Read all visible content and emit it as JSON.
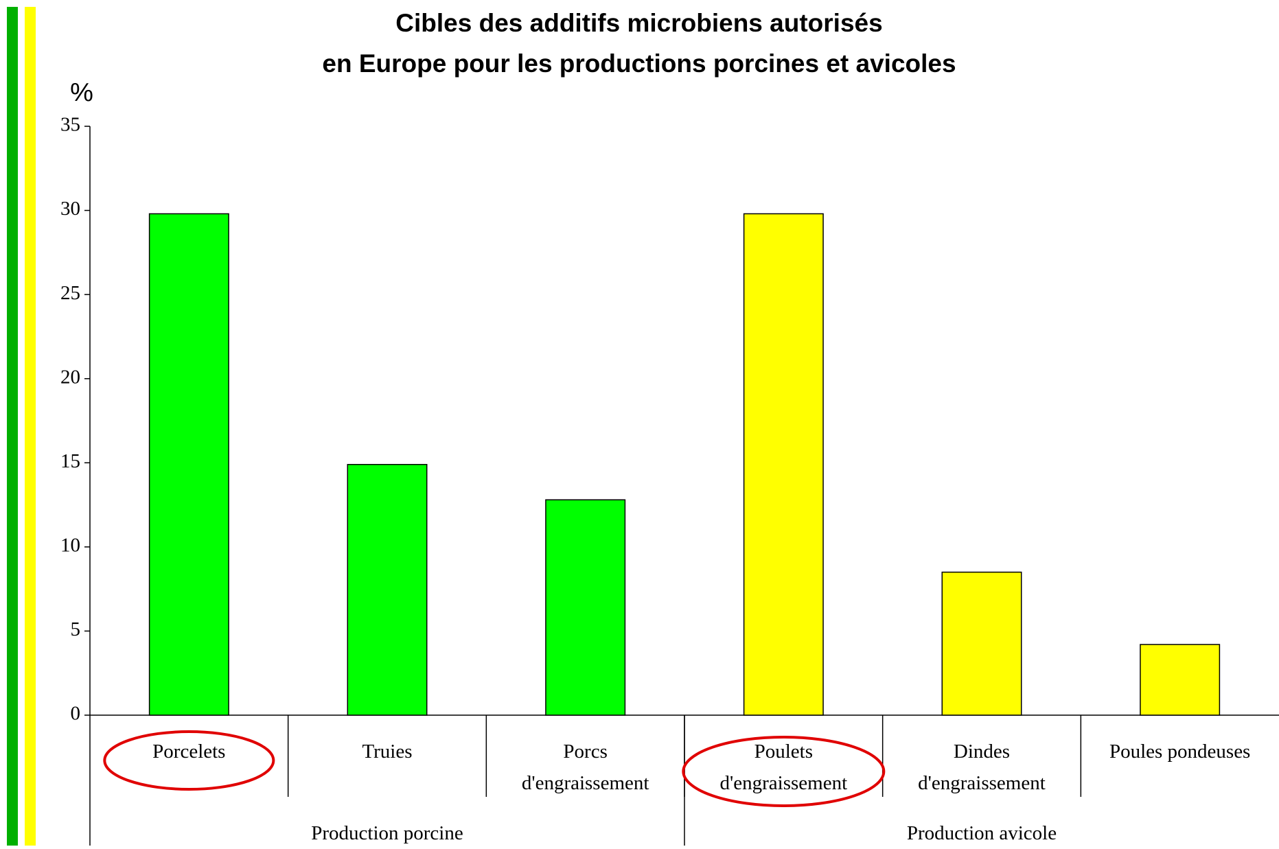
{
  "chart_data": {
    "type": "bar",
    "title": "Cibles des additifs microbiens autorisés\nen Europe pour les productions porcines et avicoles",
    "y_label": "%",
    "categories": [
      "Porcelets",
      "Truies",
      "Porcs\nd'engraissement",
      "Poulets\nd'engraissement",
      "Dindes\nd'engraissement",
      "Poules pondeuses"
    ],
    "values": [
      29.8,
      14.9,
      12.8,
      29.8,
      8.5,
      4.2
    ],
    "colors": [
      "#00ff00",
      "#00ff00",
      "#00ff00",
      "#ffff00",
      "#ffff00",
      "#ffff00"
    ],
    "group_labels": [
      "Production porcine",
      "Production avicole"
    ],
    "ylim": [
      0,
      35
    ],
    "yticks": [
      0,
      5,
      10,
      15,
      20,
      25,
      30,
      35
    ],
    "grid": false
  }
}
